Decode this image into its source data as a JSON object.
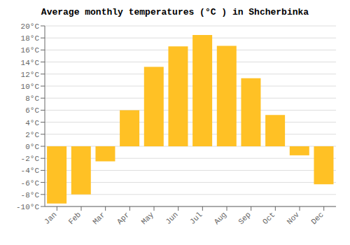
{
  "chart_data": {
    "type": "bar",
    "title": "Average monthly temperatures (°C ) in Shcherbinka",
    "categories": [
      "Jan",
      "Feb",
      "Mar",
      "Apr",
      "May",
      "Jun",
      "Jul",
      "Aug",
      "Sep",
      "Oct",
      "Nov",
      "Dec"
    ],
    "values": [
      -9.5,
      -8.0,
      -2.5,
      6.0,
      13.2,
      16.6,
      18.5,
      16.7,
      11.3,
      5.2,
      -1.5,
      -6.3
    ],
    "color": "#FFC125",
    "ylim": [
      -10,
      20
    ],
    "yticks": [
      {
        "value": -10,
        "label": "-10°C"
      },
      {
        "value": -8,
        "label": "-8°C"
      },
      {
        "value": -6,
        "label": "-6°C"
      },
      {
        "value": -4,
        "label": "-4°C"
      },
      {
        "value": -2,
        "label": "-2°C"
      },
      {
        "value": 0,
        "label": "0°C"
      },
      {
        "value": 2,
        "label": "2°C"
      },
      {
        "value": 4,
        "label": "4°C"
      },
      {
        "value": 6,
        "label": "6°C"
      },
      {
        "value": 8,
        "label": "8°C"
      },
      {
        "value": 10,
        "label": "10°C"
      },
      {
        "value": 12,
        "label": "12°C"
      },
      {
        "value": 14,
        "label": "14°C"
      },
      {
        "value": 16,
        "label": "16°C"
      },
      {
        "value": 18,
        "label": "18°C"
      },
      {
        "value": 20,
        "label": "20°C"
      }
    ],
    "grid": true
  }
}
